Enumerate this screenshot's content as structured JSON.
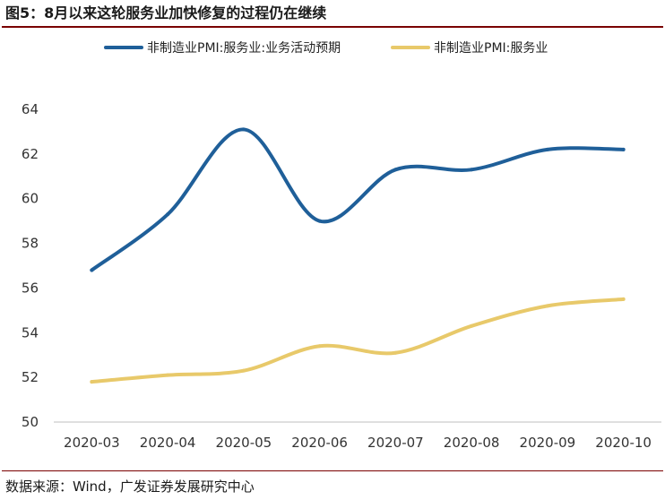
{
  "figure": {
    "title": "图5：8月以来这轮服务业加快修复的过程仍在继续",
    "source": "数据来源：Wind，广发证券发展研究中心"
  },
  "chart_data": {
    "type": "line",
    "categories": [
      "2020-03",
      "2020-04",
      "2020-05",
      "2020-06",
      "2020-07",
      "2020-08",
      "2020-09",
      "2020-10"
    ],
    "series": [
      {
        "name": "非制造业PMI:服务业:业务活动预期",
        "color": "#1f5f99",
        "values": [
          56.8,
          59.3,
          63.1,
          59.0,
          61.3,
          61.3,
          62.2,
          62.2
        ]
      },
      {
        "name": "非制造业PMI:服务业",
        "color": "#e8c96a",
        "values": [
          51.8,
          52.1,
          52.3,
          53.4,
          53.1,
          54.3,
          55.2,
          55.5
        ]
      }
    ],
    "ylim": [
      50,
      64
    ],
    "yticks": [
      50,
      52,
      54,
      56,
      58,
      60,
      62,
      64
    ],
    "grid": false,
    "legend": "top"
  }
}
